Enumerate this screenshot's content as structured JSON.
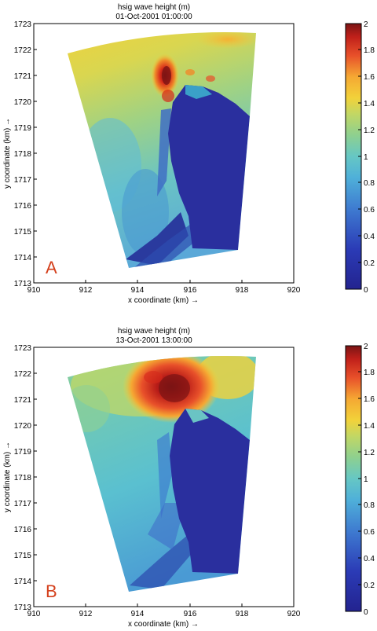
{
  "chart_data": [
    {
      "type": "heatmap",
      "panel_letter": "A",
      "title": "hsig wave height (m)",
      "subtitle": "01-Oct-2001 01:00:00",
      "xlabel": "x coordinate (km) →",
      "ylabel": "y coordinate (km) →",
      "xlim": [
        910,
        920
      ],
      "ylim": [
        1713,
        1723
      ],
      "x_ticks": [
        "910",
        "912",
        "914",
        "916",
        "918",
        "920"
      ],
      "y_ticks": [
        "1713",
        "1714",
        "1715",
        "1716",
        "1717",
        "1718",
        "1719",
        "1720",
        "1721",
        "1722",
        "1723"
      ],
      "colorbar": {
        "min": 0,
        "max": 2,
        "ticks": [
          "0",
          "0.2",
          "0.4",
          "0.6",
          "0.8",
          "1",
          "1.2",
          "1.4",
          "1.6",
          "1.8",
          "2"
        ]
      },
      "colormap": "jet",
      "hotspot": {
        "x": 915.0,
        "y": 1720.9,
        "value": 1.9
      }
    },
    {
      "type": "heatmap",
      "panel_letter": "B",
      "title": "hsig wave height (m)",
      "subtitle": "13-Oct-2001 13:00:00",
      "xlabel": "x coordinate (km) →",
      "ylabel": "y coordinate (km) →",
      "xlim": [
        910,
        920
      ],
      "ylim": [
        1713,
        1723
      ],
      "x_ticks": [
        "910",
        "912",
        "914",
        "916",
        "918",
        "920"
      ],
      "y_ticks": [
        "1713",
        "1714",
        "1715",
        "1716",
        "1717",
        "1718",
        "1719",
        "1720",
        "1721",
        "1722",
        "1723"
      ],
      "colorbar": {
        "min": 0,
        "max": 2,
        "ticks": [
          "0",
          "0.2",
          "0.4",
          "0.6",
          "0.8",
          "1",
          "1.2",
          "1.4",
          "1.6",
          "1.8",
          "2"
        ]
      },
      "colormap": "jet",
      "hotspot": {
        "x": 915.5,
        "y": 1721.5,
        "value": 1.95
      }
    }
  ],
  "colors": {
    "deep_blue": "#2a2f9e",
    "mid_blue": "#3b62c8",
    "cyan": "#5ec5dc",
    "green": "#8ed08f",
    "yellow": "#f2d23a",
    "orange": "#f08a2a",
    "red": "#d62a1a",
    "dark_red": "#7a1414",
    "letter": "#d4401c"
  }
}
